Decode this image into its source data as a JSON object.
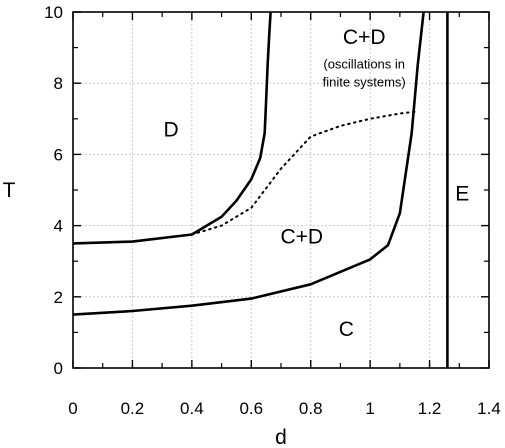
{
  "chart_data": {
    "type": "line",
    "title": "",
    "xlabel": "d",
    "ylabel": "T",
    "xlim": [
      0,
      1.4
    ],
    "ylim": [
      0,
      10
    ],
    "grid": true,
    "x_ticks": [
      0,
      0.2,
      0.4,
      0.6,
      0.8,
      1,
      1.2,
      1.4
    ],
    "x_tick_labels": [
      "0",
      "0.2",
      "0.4",
      "0.6",
      "0.8",
      "1",
      "1.2",
      "1.4"
    ],
    "y_ticks": [
      0,
      2,
      4,
      6,
      8,
      10
    ],
    "y_tick_labels": [
      "0",
      "2",
      "4",
      "6",
      "8",
      "10"
    ],
    "series": [
      {
        "style": "solid",
        "points": [
          [
            0,
            3.5
          ],
          [
            0.2,
            3.55
          ],
          [
            0.4,
            3.75
          ],
          [
            0.45,
            4.0
          ],
          [
            0.5,
            4.25
          ],
          [
            0.55,
            4.7
          ],
          [
            0.6,
            5.3
          ],
          [
            0.63,
            5.9
          ],
          [
            0.645,
            6.6
          ],
          [
            0.65,
            7.5
          ],
          [
            0.655,
            8.5
          ],
          [
            0.66,
            9.3
          ],
          [
            0.665,
            10
          ]
        ]
      },
      {
        "style": "solid",
        "points": [
          [
            0,
            1.5
          ],
          [
            0.2,
            1.6
          ],
          [
            0.4,
            1.75
          ],
          [
            0.6,
            1.95
          ],
          [
            0.8,
            2.35
          ],
          [
            1.0,
            3.05
          ],
          [
            1.06,
            3.45
          ],
          [
            1.1,
            4.35
          ],
          [
            1.14,
            6.6
          ],
          [
            1.16,
            8.5
          ],
          [
            1.18,
            10
          ]
        ]
      },
      {
        "style": "dotted",
        "points": [
          [
            0.4,
            3.75
          ],
          [
            0.5,
            4.0
          ],
          [
            0.6,
            4.5
          ],
          [
            0.7,
            5.6
          ],
          [
            0.8,
            6.5
          ],
          [
            0.9,
            6.8
          ],
          [
            1.0,
            7.0
          ],
          [
            1.1,
            7.15
          ],
          [
            1.15,
            7.2
          ]
        ]
      },
      {
        "style": "solid",
        "points": [
          [
            1.26,
            0
          ],
          [
            1.26,
            10
          ]
        ]
      }
    ],
    "regions": [
      {
        "label": "D",
        "x": 0.33,
        "y": 6.7
      },
      {
        "label": "C+D",
        "x": 0.98,
        "y": 9.3
      },
      {
        "label": "C+D",
        "x": 0.77,
        "y": 3.7
      },
      {
        "label": "C",
        "x": 0.92,
        "y": 1.1
      },
      {
        "label": "E",
        "x": 1.31,
        "y": 4.9
      }
    ],
    "annotations": [
      {
        "text": "(oscillations in",
        "x": 0.98,
        "y": 8.55
      },
      {
        "text": "finite systems)",
        "x": 0.98,
        "y": 8.05
      }
    ]
  }
}
